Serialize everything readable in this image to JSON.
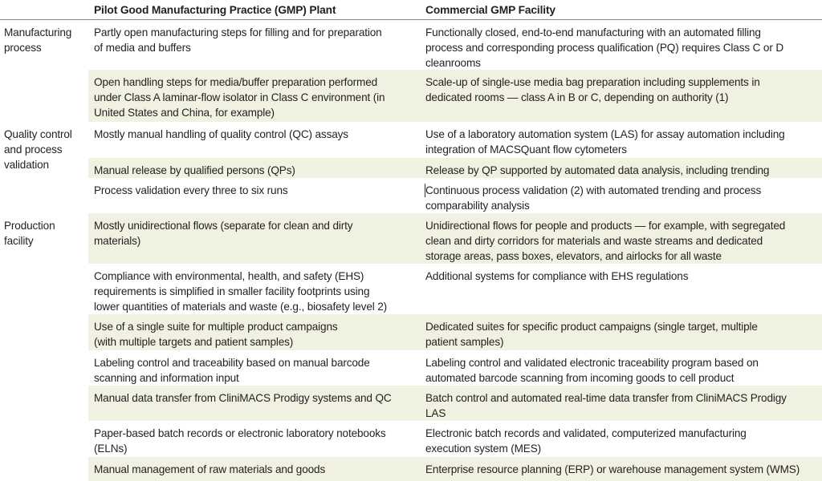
{
  "header": {
    "col_category": "",
    "col_pilot": "Pilot Good Manufacturing Practice (GMP) Plant",
    "col_commercial": "Commercial GMP Facility"
  },
  "shade_color": "#f0f1e0",
  "rows": [
    {
      "category": [
        "Manufacturing",
        "process"
      ],
      "pilot": [
        "Partly open manufacturing steps for filling and for preparation",
        "of media and buffers"
      ],
      "commercial": [
        "Functionally closed, end-to-end manufacturing with an automated filling",
        "process and corresponding process qualification (PQ) requires Class C or D",
        "cleanrooms"
      ],
      "shaded": false
    },
    {
      "category": [],
      "pilot": [
        "Open handling steps for media/buffer preparation performed",
        "under Class A laminar-flow isolator in Class C environment (in",
        "United States and China, for example)"
      ],
      "commercial": [
        "Scale-up of single-use media bag preparation including supplements in",
        "dedicated rooms — class A in B or C, depending on authority (1)"
      ],
      "shaded": true
    },
    {
      "category": [
        "Quality control",
        "and process",
        "validation"
      ],
      "pilot": [
        "Mostly manual handling of quality control (QC) assays"
      ],
      "commercial": [
        "Use of a laboratory automation system (LAS) for assay automation including",
        "integration of MACSQuant flow cytometers"
      ],
      "shaded": false
    },
    {
      "category": [],
      "pilot": [
        "Manual release by qualified persons (QPs)"
      ],
      "commercial": [
        "Release by QP supported by automated data analysis, including trending"
      ],
      "shaded": true
    },
    {
      "category": [],
      "pilot": [
        "Process validation every three to six runs"
      ],
      "commercial": [
        "Continuous process validation (2) with automated trending and process",
        "comparability analysis"
      ],
      "shaded": false
    },
    {
      "category": [
        "Production",
        "facility"
      ],
      "pilot": [
        "Mostly unidirectional flows (separate for clean and dirty",
        "materials)"
      ],
      "commercial": [
        "Unidirectional flows for people and products — for example, with segregated",
        "clean and dirty corridors for materials and waste streams and dedicated",
        "storage areas, pass boxes, elevators, and airlocks for all waste"
      ],
      "shaded": true
    },
    {
      "category": [],
      "pilot": [
        "Compliance with environmental, health, and safety (EHS)",
        "requirements is simplified in smaller facility footprints using",
        "lower quantities of materials and waste (e.g., biosafety level 2)"
      ],
      "commercial": [
        "Additional systems for compliance with EHS regulations"
      ],
      "shaded": false
    },
    {
      "category": [],
      "pilot": [
        "Use of a single suite for multiple product campaigns",
        "(with multiple targets and patient samples)"
      ],
      "commercial": [
        "Dedicated suites for specific product campaigns (single target, multiple",
        "patient samples)"
      ],
      "shaded": true
    },
    {
      "category": [],
      "pilot": [
        "Labeling control and traceability based on manual barcode",
        "scanning and information input"
      ],
      "commercial": [
        "Labeling control and validated electronic traceability program based on",
        "automated barcode scanning from incoming goods to cell product"
      ],
      "shaded": false
    },
    {
      "category": [],
      "pilot": [
        "Manual data transfer from CliniMACS Prodigy systems and QC"
      ],
      "commercial": [
        "Batch control and automated real-time data transfer from CliniMACS Prodigy",
        "LAS"
      ],
      "shaded": true
    },
    {
      "category": [],
      "pilot": [
        "Paper-based batch records or electronic laboratory notebooks",
        "(ELNs)"
      ],
      "commercial": [
        "Electronic batch records and validated, computerized manufacturing",
        "execution system (MES)"
      ],
      "shaded": false
    },
    {
      "category": [],
      "pilot": [
        "Manual management of raw materials and goods"
      ],
      "commercial": [
        "Enterprise resource planning (ERP) or warehouse management system (WMS)"
      ],
      "shaded": true
    }
  ]
}
